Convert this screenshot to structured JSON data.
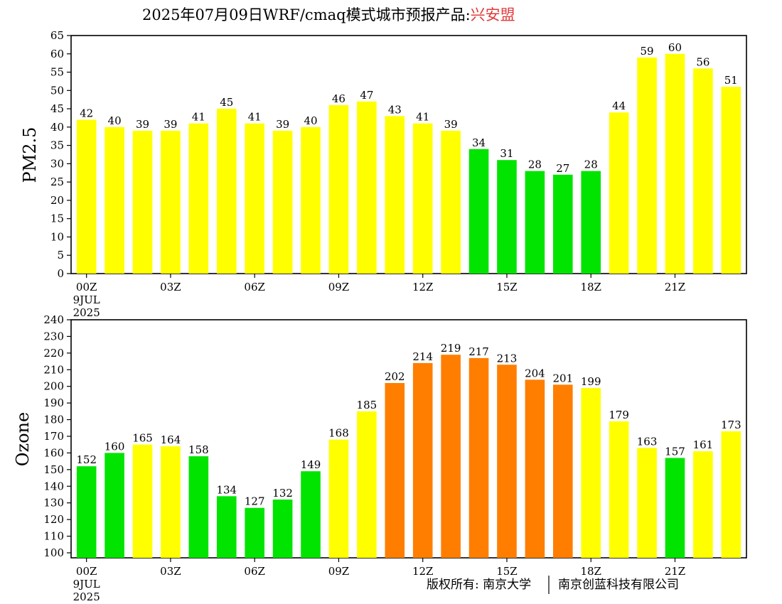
{
  "title": {
    "prefix": "2025年07月09日WRF/cmaq模式城市预报产品:",
    "city": "兴安盟",
    "city_color": "#e03a3a"
  },
  "colors": {
    "green": "#00e400",
    "yellow": "#ffff00",
    "orange": "#ff7e00"
  },
  "x_ticks": [
    {
      "index": 0,
      "label": "00Z",
      "sub": [
        "9JUL",
        "2025"
      ]
    },
    {
      "index": 3,
      "label": "03Z"
    },
    {
      "index": 6,
      "label": "06Z"
    },
    {
      "index": 9,
      "label": "09Z"
    },
    {
      "index": 12,
      "label": "12Z"
    },
    {
      "index": 15,
      "label": "15Z"
    },
    {
      "index": 18,
      "label": "18Z"
    },
    {
      "index": 21,
      "label": "21Z"
    }
  ],
  "footer": {
    "copyright": "版权所有: 南京大学",
    "company": "南京创蓝科技有限公司"
  },
  "chart_data": [
    {
      "type": "bar",
      "ylabel": "PM2.5",
      "ylim": [
        0,
        65
      ],
      "yticks": [
        0,
        5,
        10,
        15,
        20,
        25,
        30,
        35,
        40,
        45,
        50,
        55,
        60,
        65
      ],
      "values": [
        42,
        40,
        39,
        39,
        41,
        45,
        41,
        39,
        40,
        46,
        47,
        43,
        41,
        39,
        34,
        31,
        28,
        27,
        28,
        44,
        59,
        60,
        56,
        51
      ],
      "bar_colors": [
        "yellow",
        "yellow",
        "yellow",
        "yellow",
        "yellow",
        "yellow",
        "yellow",
        "yellow",
        "yellow",
        "yellow",
        "yellow",
        "yellow",
        "yellow",
        "yellow",
        "green",
        "green",
        "green",
        "green",
        "green",
        "yellow",
        "yellow",
        "yellow",
        "yellow",
        "yellow"
      ]
    },
    {
      "type": "bar",
      "ylabel": "Ozone",
      "ylim": [
        97,
        240
      ],
      "yticks": [
        100,
        110,
        120,
        130,
        140,
        150,
        160,
        170,
        180,
        190,
        200,
        210,
        220,
        230,
        240
      ],
      "values": [
        152,
        160,
        165,
        164,
        158,
        134,
        127,
        132,
        149,
        168,
        185,
        202,
        214,
        219,
        217,
        213,
        204,
        201,
        199,
        179,
        163,
        157,
        161,
        173
      ],
      "bar_colors": [
        "green",
        "green",
        "yellow",
        "yellow",
        "green",
        "green",
        "green",
        "green",
        "green",
        "yellow",
        "yellow",
        "orange",
        "orange",
        "orange",
        "orange",
        "orange",
        "orange",
        "orange",
        "yellow",
        "yellow",
        "yellow",
        "green",
        "yellow",
        "yellow"
      ]
    }
  ]
}
